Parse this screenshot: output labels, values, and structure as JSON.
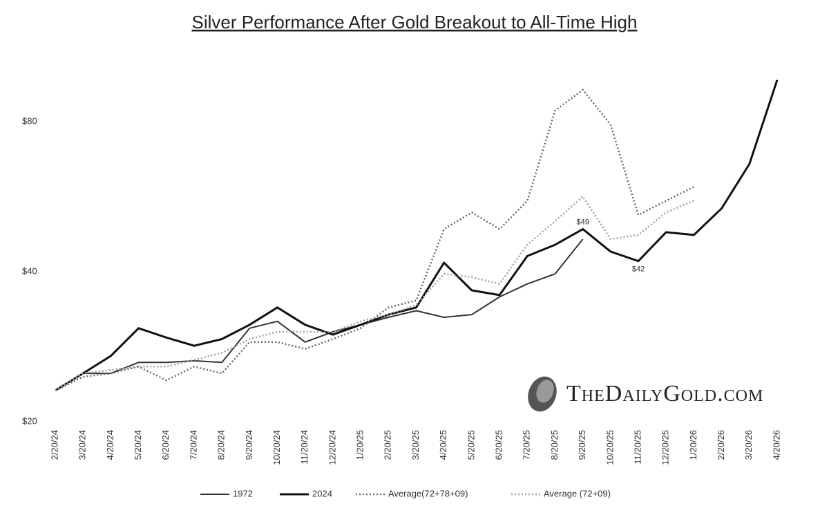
{
  "chart_data": {
    "type": "line",
    "title": "Silver Performance After Gold Breakout to All-Time High",
    "categories": [
      "2/20/24",
      "3/20/24",
      "4/20/24",
      "5/20/24",
      "6/20/24",
      "7/20/24",
      "8/20/24",
      "9/20/24",
      "10/20/24",
      "11/20/24",
      "12/20/24",
      "1/20/25",
      "2/20/25",
      "3/20/25",
      "4/20/25",
      "5/20/25",
      "6/20/25",
      "7/20/25",
      "8/20/25",
      "9/20/25",
      "10/20/25",
      "11/20/25",
      "12/20/25",
      "1/20/26",
      "2/20/26",
      "3/20/26",
      "4/20/26"
    ],
    "series": [
      {
        "name": "1972",
        "color": "#333333",
        "style": "solid",
        "width": 2,
        "values": [
          23.1,
          25.0,
          25.0,
          26.3,
          26.3,
          26.5,
          26.3,
          30.8,
          31.8,
          28.9,
          30.3,
          31.3,
          32.4,
          33.4,
          32.4,
          32.8,
          35.6,
          37.8,
          39.6,
          46.5,
          null,
          null,
          null,
          null,
          null,
          null,
          null
        ]
      },
      {
        "name": "2024",
        "color": "#111111",
        "style": "solid",
        "width": 3,
        "values": [
          23.1,
          25.0,
          27.1,
          30.8,
          29.5,
          28.4,
          29.3,
          31.3,
          33.9,
          31.3,
          29.9,
          31.3,
          32.8,
          33.9,
          41.7,
          36.7,
          35.9,
          43.0,
          45.3,
          48.7,
          43.9,
          42.0,
          48.0,
          47.4,
          53.6,
          65.8,
          97.0
        ]
      },
      {
        "name": "Average(72+78+09)",
        "color": "#666666",
        "style": "dotted",
        "width": 2.5,
        "values": [
          23.1,
          24.6,
          25.0,
          25.8,
          24.2,
          25.8,
          25.0,
          28.9,
          28.9,
          28.0,
          29.3,
          30.8,
          33.9,
          35.0,
          48.7,
          52.6,
          48.7,
          55.5,
          84.2,
          92.7,
          78.9,
          52.0,
          55.5,
          59.2,
          null,
          null,
          null
        ]
      },
      {
        "name": "Average (72+09)",
        "color": "#a0a0a0",
        "style": "dotted",
        "width": 2.5,
        "values": [
          23.1,
          25.0,
          25.4,
          25.8,
          25.8,
          26.6,
          27.5,
          29.3,
          30.3,
          30.3,
          30.3,
          31.8,
          32.8,
          34.3,
          39.6,
          39.0,
          37.8,
          45.3,
          50.5,
          56.6,
          46.5,
          47.4,
          52.6,
          55.5,
          null,
          null,
          null
        ]
      }
    ],
    "annotations": [
      {
        "text": "$49",
        "category": 19,
        "value": 48.7
      },
      {
        "text": "$42",
        "category": 21,
        "value": 42.0
      }
    ],
    "watermark": "TheDailyGold.com",
    "log_scale": true,
    "ylim": [
      20,
      107
    ],
    "yticks": [
      {
        "value": 20,
        "label": "$20"
      },
      {
        "value": 40,
        "label": "$40"
      },
      {
        "value": 80,
        "label": "$80"
      }
    ],
    "grid": false,
    "legend": "bottom"
  }
}
